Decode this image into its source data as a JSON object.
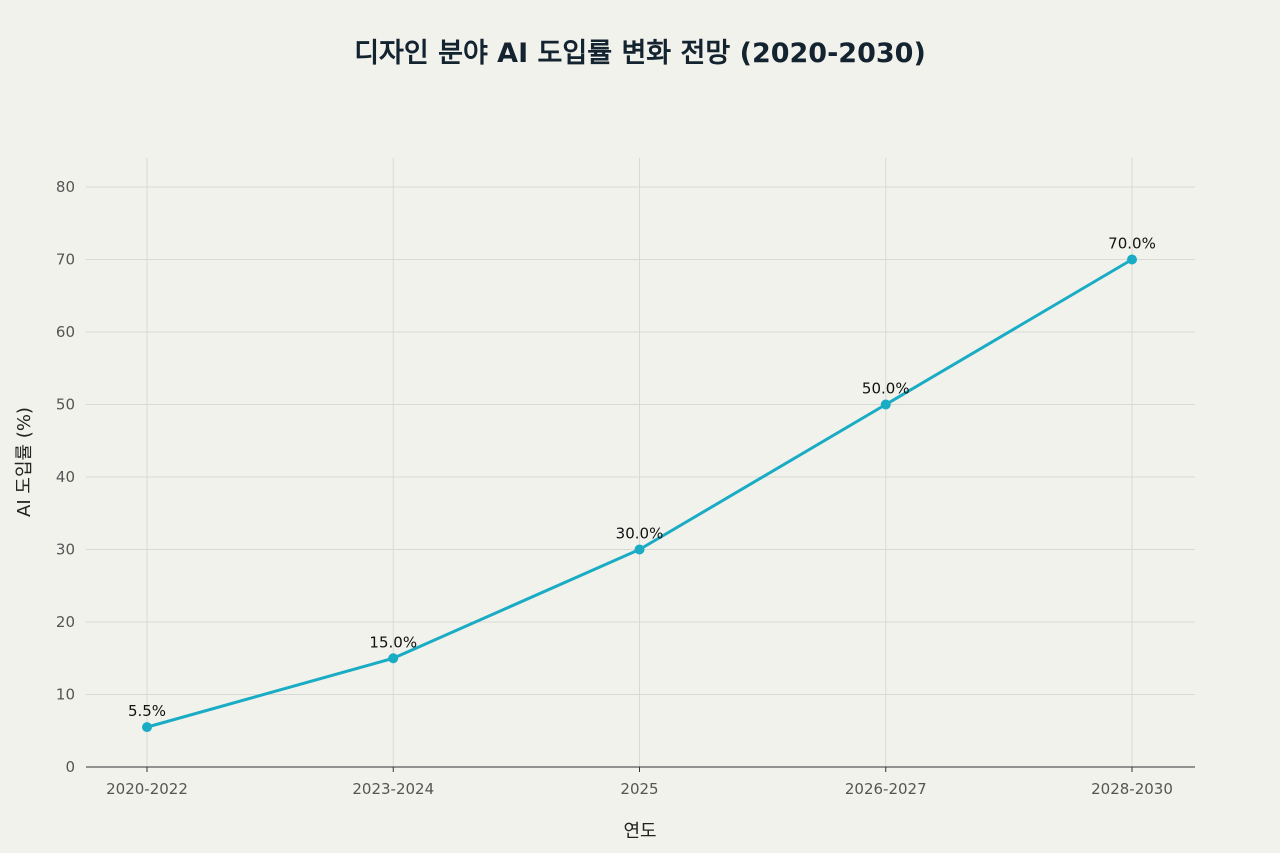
{
  "chart_data": {
    "type": "line",
    "title": "디자인 분야 AI 도입률 변화 전망 (2020-2030)",
    "xlabel": "연도",
    "ylabel": "AI 도입률 (%)",
    "categories": [
      "2020-2022",
      "2023-2024",
      "2025",
      "2026-2027",
      "2028-2030"
    ],
    "series": [
      {
        "values": [
          5.5,
          15.0,
          30.0,
          50.0,
          70.0
        ],
        "data_labels": [
          "5.5%",
          "15.0%",
          "30.0%",
          "50.0%",
          "70.0%"
        ],
        "color": "#1aacc4"
      }
    ],
    "ylim": [
      0,
      80
    ],
    "yticks": [
      0,
      10,
      20,
      30,
      40,
      50,
      60,
      70,
      80
    ],
    "grid": true,
    "legend": "none"
  }
}
